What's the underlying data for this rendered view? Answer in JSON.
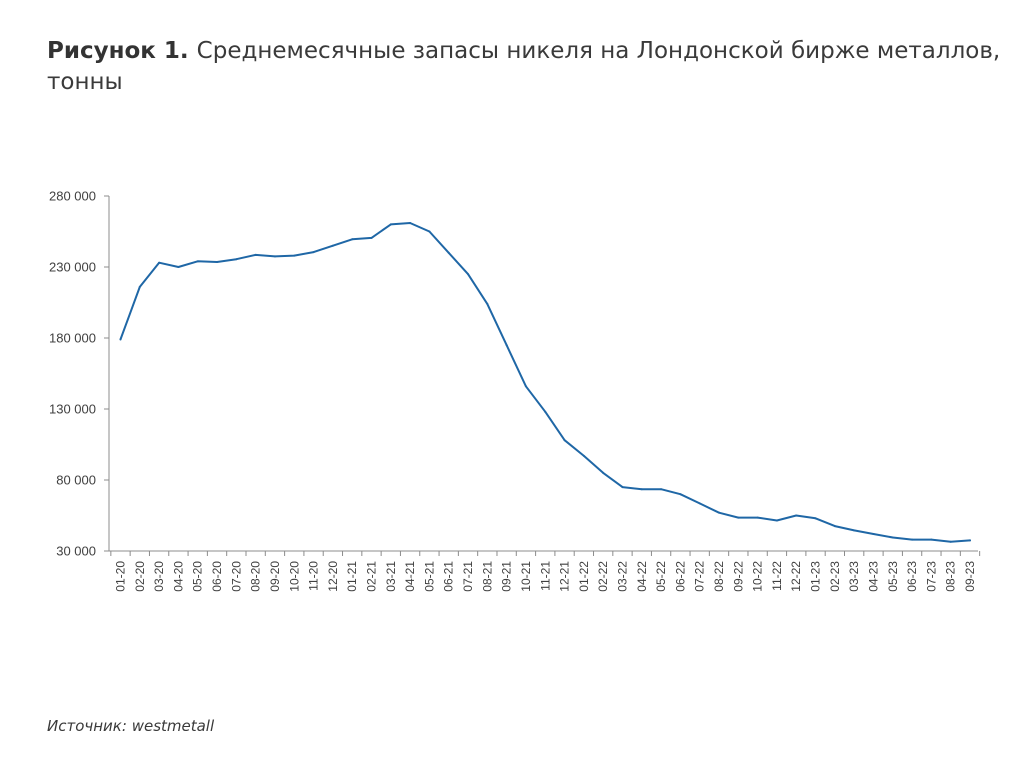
{
  "figure": {
    "label": "Рисунок 1.",
    "title": "Среднемесячные запасы никеля на Лондонской бирже металлов, тонны"
  },
  "source": {
    "label": "Источник:",
    "value": "westmetall"
  },
  "colors": {
    "line": "#1f67a6",
    "axis": "#8c8c8c",
    "text": "#404040"
  },
  "chart_data": {
    "type": "line",
    "title": "Среднемесячные запасы никеля на Лондонской бирже металлов, тонны",
    "xlabel": "",
    "ylabel": "",
    "ylim": [
      30000,
      280000
    ],
    "yticks": [
      30000,
      80000,
      130000,
      180000,
      230000,
      280000
    ],
    "ytick_labels": [
      "30 000",
      "80 000",
      "130 000",
      "180 000",
      "230 000",
      "280 000"
    ],
    "grid": false,
    "legend": "none",
    "categories": [
      "01-20",
      "02-20",
      "03-20",
      "04-20",
      "05-20",
      "06-20",
      "07-20",
      "08-20",
      "09-20",
      "10-20",
      "11-20",
      "12-20",
      "01-21",
      "02-21",
      "03-21",
      "04-21",
      "05-21",
      "06-21",
      "07-21",
      "08-21",
      "09-21",
      "10-21",
      "11-21",
      "12-21",
      "01-22",
      "02-22",
      "03-22",
      "04-22",
      "05-22",
      "06-22",
      "07-22",
      "08-22",
      "09-22",
      "10-22",
      "11-22",
      "12-22",
      "01-23",
      "02-23",
      "03-23",
      "04-23",
      "05-23",
      "06-23",
      "07-23",
      "08-23",
      "09-23"
    ],
    "series": [
      {
        "values": [
          179000,
          216000,
          233000,
          230000,
          234000,
          233500,
          235500,
          238500,
          237500,
          238000,
          240500,
          245000,
          249500,
          250500,
          260000,
          261000,
          255000,
          240000,
          225000,
          204000,
          175000,
          146000,
          128000,
          108000,
          97000,
          85000,
          75000,
          73500,
          73500,
          70000,
          63500,
          57000,
          53500,
          53500,
          51500,
          55000,
          53000,
          47500,
          44500,
          42000,
          39500,
          38000,
          38000,
          36500,
          37500
        ]
      }
    ]
  }
}
